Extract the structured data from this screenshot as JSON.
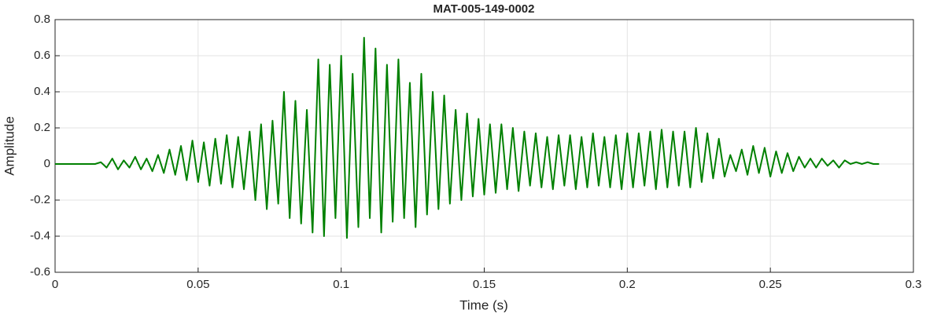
{
  "chart_data": {
    "type": "line",
    "title": "MAT-005-149-0002",
    "xlabel": "Time (s)",
    "ylabel": "Amplitude",
    "x": [
      0,
      0.002,
      0.004,
      0.006,
      0.008,
      0.01,
      0.012,
      0.014,
      0.016,
      0.018,
      0.02,
      0.022,
      0.024,
      0.026,
      0.028,
      0.03,
      0.032,
      0.034,
      0.036,
      0.038,
      0.04,
      0.042,
      0.044,
      0.046,
      0.048,
      0.05,
      0.052,
      0.054,
      0.056,
      0.058,
      0.06,
      0.062,
      0.064,
      0.066,
      0.068,
      0.07,
      0.072,
      0.074,
      0.076,
      0.078,
      0.08,
      0.082,
      0.084,
      0.086,
      0.088,
      0.09,
      0.092,
      0.094,
      0.096,
      0.098,
      0.1,
      0.102,
      0.104,
      0.106,
      0.108,
      0.11,
      0.112,
      0.114,
      0.116,
      0.118,
      0.12,
      0.122,
      0.124,
      0.126,
      0.128,
      0.13,
      0.132,
      0.134,
      0.136,
      0.138,
      0.14,
      0.142,
      0.144,
      0.146,
      0.148,
      0.15,
      0.152,
      0.154,
      0.156,
      0.158,
      0.16,
      0.162,
      0.164,
      0.166,
      0.168,
      0.17,
      0.172,
      0.174,
      0.176,
      0.178,
      0.18,
      0.182,
      0.184,
      0.186,
      0.188,
      0.19,
      0.192,
      0.194,
      0.196,
      0.198,
      0.2,
      0.202,
      0.204,
      0.206,
      0.208,
      0.21,
      0.212,
      0.214,
      0.216,
      0.218,
      0.22,
      0.222,
      0.224,
      0.226,
      0.228,
      0.23,
      0.232,
      0.234,
      0.236,
      0.238,
      0.24,
      0.242,
      0.244,
      0.246,
      0.248,
      0.25,
      0.252,
      0.254,
      0.256,
      0.258,
      0.26,
      0.262,
      0.264,
      0.266,
      0.268,
      0.27,
      0.272,
      0.274,
      0.276,
      0.278,
      0.28,
      0.282,
      0.284,
      0.286,
      0.288
    ],
    "series": [
      {
        "name": "Amplitude",
        "color": "#008000",
        "values": [
          0,
          0,
          0,
          0,
          0,
          0,
          0,
          0,
          0.01,
          -0.02,
          0.03,
          -0.03,
          0.02,
          -0.02,
          0.04,
          -0.03,
          0.03,
          -0.04,
          0.05,
          -0.05,
          0.08,
          -0.06,
          0.1,
          -0.09,
          0.13,
          -0.1,
          0.12,
          -0.12,
          0.14,
          -0.11,
          0.16,
          -0.13,
          0.15,
          -0.14,
          0.18,
          -0.2,
          0.22,
          -0.25,
          0.24,
          -0.22,
          0.4,
          -0.3,
          0.35,
          -0.33,
          0.3,
          -0.38,
          0.58,
          -0.4,
          0.55,
          -0.3,
          0.6,
          -0.41,
          0.5,
          -0.35,
          0.7,
          -0.3,
          0.64,
          -0.38,
          0.55,
          -0.32,
          0.58,
          -0.3,
          0.45,
          -0.35,
          0.5,
          -0.28,
          0.4,
          -0.25,
          0.38,
          -0.22,
          0.3,
          -0.2,
          0.28,
          -0.18,
          0.25,
          -0.17,
          0.22,
          -0.16,
          0.22,
          -0.14,
          0.2,
          -0.15,
          0.18,
          -0.12,
          0.17,
          -0.13,
          0.15,
          -0.14,
          0.16,
          -0.12,
          0.16,
          -0.14,
          0.15,
          -0.13,
          0.17,
          -0.12,
          0.15,
          -0.13,
          0.16,
          -0.14,
          0.17,
          -0.13,
          0.17,
          -0.12,
          0.18,
          -0.14,
          0.19,
          -0.13,
          0.18,
          -0.12,
          0.18,
          -0.13,
          0.2,
          -0.1,
          0.17,
          -0.08,
          0.14,
          -0.07,
          0.05,
          -0.04,
          0.08,
          -0.06,
          0.1,
          -0.05,
          0.09,
          -0.07,
          0.07,
          -0.05,
          0.06,
          -0.04,
          0.04,
          -0.02,
          0.03,
          -0.02,
          0.03,
          -0.01,
          0.02,
          -0.02,
          0.02,
          0,
          0.01,
          0,
          0.01,
          0,
          0
        ]
      }
    ],
    "xlim": [
      0,
      0.3
    ],
    "xticks": [
      0,
      0.05,
      0.1,
      0.15,
      0.2,
      0.25,
      0.3
    ],
    "ylim": [
      -0.6,
      0.8
    ],
    "yticks": [
      -0.6,
      -0.4,
      -0.2,
      0,
      0.2,
      0.4,
      0.6,
      0.8
    ],
    "grid": true
  }
}
